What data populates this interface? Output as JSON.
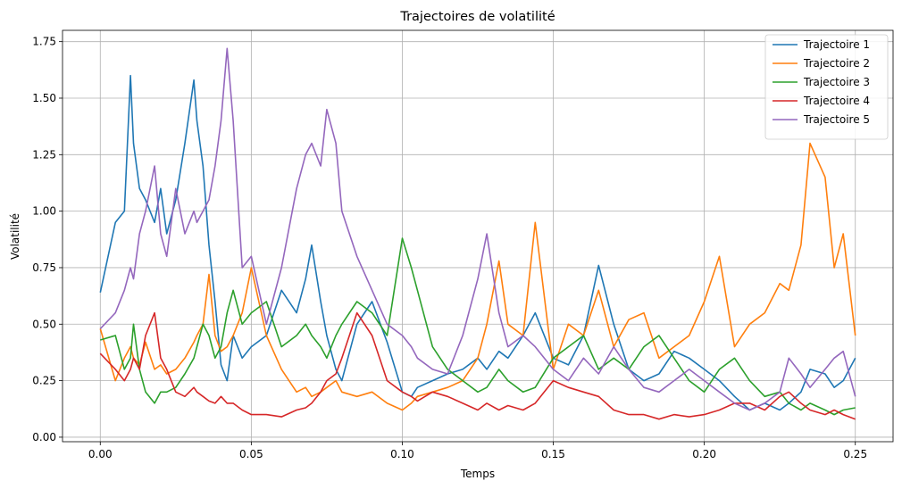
{
  "chart_data": {
    "type": "line",
    "title": "Trajectoires de volatilité",
    "xlabel": "Temps",
    "ylabel": "Volatilité",
    "xlim": [
      -0.0125,
      0.2625
    ],
    "ylim": [
      -0.02,
      1.8
    ],
    "x_ticks": [
      0.0,
      0.05,
      0.1,
      0.15,
      0.2,
      0.25
    ],
    "x_tick_labels": [
      "0.00",
      "0.05",
      "0.10",
      "0.15",
      "0.20",
      "0.25"
    ],
    "y_ticks": [
      0.0,
      0.25,
      0.5,
      0.75,
      1.0,
      1.25,
      1.5,
      1.75
    ],
    "y_tick_labels": [
      "0.00",
      "0.25",
      "0.50",
      "0.75",
      "1.00",
      "1.25",
      "1.50",
      "1.75"
    ],
    "grid": true,
    "legend_position": "top-right",
    "x": [
      0.0,
      0.005,
      0.008,
      0.01,
      0.011,
      0.013,
      0.015,
      0.018,
      0.02,
      0.022,
      0.025,
      0.028,
      0.031,
      0.032,
      0.034,
      0.036,
      0.038,
      0.04,
      0.042,
      0.044,
      0.047,
      0.05,
      0.055,
      0.06,
      0.065,
      0.068,
      0.07,
      0.073,
      0.075,
      0.078,
      0.08,
      0.085,
      0.09,
      0.095,
      0.1,
      0.103,
      0.105,
      0.11,
      0.115,
      0.12,
      0.125,
      0.128,
      0.132,
      0.135,
      0.14,
      0.144,
      0.15,
      0.155,
      0.16,
      0.165,
      0.17,
      0.175,
      0.18,
      0.185,
      0.19,
      0.195,
      0.2,
      0.205,
      0.21,
      0.215,
      0.22,
      0.225,
      0.228,
      0.232,
      0.235,
      0.24,
      0.243,
      0.246,
      0.25
    ],
    "series": [
      {
        "name": "Trajectoire 1",
        "color": "#1f77b4",
        "values": [
          0.64,
          0.95,
          1.0,
          1.6,
          1.3,
          1.1,
          1.05,
          0.95,
          1.1,
          0.9,
          1.05,
          1.3,
          1.58,
          1.4,
          1.2,
          0.85,
          0.6,
          0.32,
          0.25,
          0.45,
          0.35,
          0.4,
          0.45,
          0.65,
          0.55,
          0.7,
          0.85,
          0.6,
          0.45,
          0.3,
          0.25,
          0.5,
          0.6,
          0.42,
          0.2,
          0.18,
          0.22,
          0.25,
          0.28,
          0.3,
          0.35,
          0.3,
          0.38,
          0.35,
          0.45,
          0.55,
          0.35,
          0.32,
          0.45,
          0.76,
          0.5,
          0.3,
          0.25,
          0.28,
          0.38,
          0.35,
          0.3,
          0.25,
          0.18,
          0.12,
          0.15,
          0.12,
          0.15,
          0.2,
          0.3,
          0.28,
          0.22,
          0.25,
          0.35
        ]
      },
      {
        "name": "Trajectoire 2",
        "color": "#ff7f0e",
        "values": [
          0.48,
          0.25,
          0.35,
          0.4,
          0.35,
          0.32,
          0.42,
          0.3,
          0.32,
          0.28,
          0.3,
          0.35,
          0.42,
          0.45,
          0.5,
          0.72,
          0.45,
          0.38,
          0.4,
          0.45,
          0.55,
          0.75,
          0.45,
          0.3,
          0.2,
          0.22,
          0.18,
          0.2,
          0.22,
          0.25,
          0.2,
          0.18,
          0.2,
          0.15,
          0.12,
          0.15,
          0.18,
          0.2,
          0.22,
          0.25,
          0.35,
          0.5,
          0.78,
          0.5,
          0.45,
          0.95,
          0.3,
          0.5,
          0.45,
          0.65,
          0.4,
          0.52,
          0.55,
          0.35,
          0.4,
          0.45,
          0.6,
          0.8,
          0.4,
          0.5,
          0.55,
          0.68,
          0.65,
          0.85,
          1.3,
          1.15,
          0.75,
          0.9,
          0.45
        ]
      },
      {
        "name": "Trajectoire 3",
        "color": "#2ca02c",
        "values": [
          0.43,
          0.45,
          0.3,
          0.35,
          0.5,
          0.3,
          0.2,
          0.15,
          0.2,
          0.2,
          0.22,
          0.28,
          0.35,
          0.4,
          0.5,
          0.45,
          0.35,
          0.4,
          0.55,
          0.65,
          0.5,
          0.55,
          0.6,
          0.4,
          0.45,
          0.5,
          0.45,
          0.4,
          0.35,
          0.45,
          0.5,
          0.6,
          0.55,
          0.45,
          0.88,
          0.75,
          0.65,
          0.4,
          0.3,
          0.25,
          0.2,
          0.22,
          0.3,
          0.25,
          0.2,
          0.22,
          0.35,
          0.4,
          0.45,
          0.3,
          0.35,
          0.3,
          0.4,
          0.45,
          0.35,
          0.25,
          0.2,
          0.3,
          0.35,
          0.25,
          0.18,
          0.2,
          0.15,
          0.12,
          0.15,
          0.12,
          0.1,
          0.12,
          0.13
        ]
      },
      {
        "name": "Trajectoire 4",
        "color": "#d62728",
        "values": [
          0.37,
          0.3,
          0.25,
          0.3,
          0.35,
          0.3,
          0.45,
          0.55,
          0.35,
          0.3,
          0.2,
          0.18,
          0.22,
          0.2,
          0.18,
          0.16,
          0.15,
          0.18,
          0.15,
          0.15,
          0.12,
          0.1,
          0.1,
          0.09,
          0.12,
          0.13,
          0.15,
          0.2,
          0.25,
          0.28,
          0.35,
          0.55,
          0.45,
          0.25,
          0.2,
          0.18,
          0.16,
          0.2,
          0.18,
          0.15,
          0.12,
          0.15,
          0.12,
          0.14,
          0.12,
          0.15,
          0.25,
          0.22,
          0.2,
          0.18,
          0.12,
          0.1,
          0.1,
          0.08,
          0.1,
          0.09,
          0.1,
          0.12,
          0.15,
          0.15,
          0.12,
          0.18,
          0.2,
          0.15,
          0.12,
          0.1,
          0.12,
          0.1,
          0.08
        ]
      },
      {
        "name": "Trajectoire 5",
        "color": "#9467bd",
        "values": [
          0.48,
          0.55,
          0.65,
          0.75,
          0.7,
          0.9,
          1.0,
          1.2,
          0.9,
          0.8,
          1.1,
          0.9,
          1.0,
          0.95,
          1.0,
          1.05,
          1.2,
          1.4,
          1.72,
          1.4,
          0.75,
          0.8,
          0.5,
          0.75,
          1.1,
          1.25,
          1.3,
          1.2,
          1.45,
          1.3,
          1.0,
          0.8,
          0.65,
          0.5,
          0.45,
          0.4,
          0.35,
          0.3,
          0.28,
          0.45,
          0.7,
          0.9,
          0.55,
          0.4,
          0.45,
          0.4,
          0.3,
          0.25,
          0.35,
          0.28,
          0.4,
          0.3,
          0.22,
          0.2,
          0.25,
          0.3,
          0.25,
          0.2,
          0.15,
          0.12,
          0.15,
          0.2,
          0.35,
          0.28,
          0.22,
          0.3,
          0.35,
          0.38,
          0.18
        ]
      }
    ]
  }
}
